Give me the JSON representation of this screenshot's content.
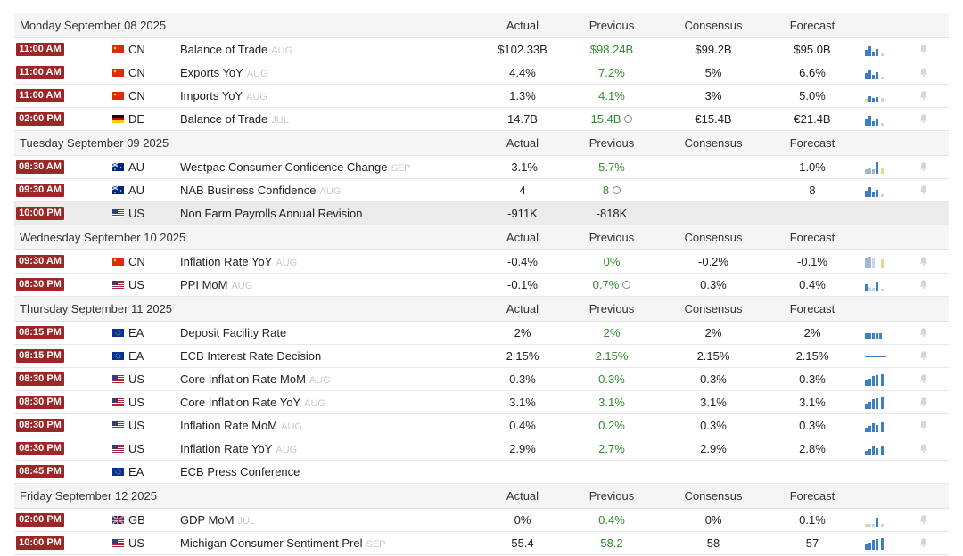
{
  "headers": {
    "actual": "Actual",
    "previous": "Previous",
    "consensus": "Consensus",
    "forecast": "Forecast"
  },
  "days": [
    {
      "date": "Monday September 08 2025",
      "events": [
        {
          "time": "11:00 AM",
          "flag": "cn",
          "country": "CN",
          "event": "Balance of Trade",
          "ref": "AUG",
          "actual": "$102.33B",
          "previous": "$98.24B",
          "previous_green": true,
          "revised": false,
          "consensus": "$99.2B",
          "forecast": "$95.0B",
          "spark": "a"
        },
        {
          "time": "11:00 AM",
          "flag": "cn",
          "country": "CN",
          "event": "Exports YoY",
          "ref": "AUG",
          "actual": "4.4%",
          "previous": "7.2%",
          "previous_green": true,
          "revised": false,
          "consensus": "5%",
          "forecast": "6.6%",
          "spark": "a"
        },
        {
          "time": "11:00 AM",
          "flag": "cn",
          "country": "CN",
          "event": "Imports YoY",
          "ref": "AUG",
          "actual": "1.3%",
          "previous": "4.1%",
          "previous_green": true,
          "revised": false,
          "consensus": "3%",
          "forecast": "5.0%",
          "spark": "b"
        },
        {
          "time": "02:00 PM",
          "flag": "de",
          "country": "DE",
          "event": "Balance of Trade",
          "ref": "JUL",
          "actual": "14.7B",
          "previous": "15.4B",
          "previous_green": true,
          "revised": true,
          "consensus": "€15.4B",
          "forecast": "€21.4B",
          "spark": "a"
        }
      ]
    },
    {
      "date": "Tuesday September 09 2025",
      "events": [
        {
          "time": "08:30 AM",
          "flag": "au",
          "country": "AU",
          "event": "Westpac Consumer Confidence Change",
          "ref": "SEP",
          "actual": "-3.1%",
          "previous": "5.7%",
          "previous_green": true,
          "revised": false,
          "consensus": "",
          "forecast": "1.0%",
          "spark": "c"
        },
        {
          "time": "09:30 AM",
          "flag": "au",
          "country": "AU",
          "event": "NAB Business Confidence",
          "ref": "AUG",
          "actual": "4",
          "previous": "8",
          "previous_green": true,
          "revised": true,
          "consensus": "",
          "forecast": "8",
          "spark": "a"
        },
        {
          "time": "10:00 PM",
          "flag": "us",
          "country": "US",
          "event": "Non Farm Payrolls Annual Revision",
          "ref": "",
          "actual": "-911K",
          "previous": "-818K",
          "previous_green": false,
          "revised": false,
          "consensus": "",
          "forecast": "",
          "spark": "",
          "shaded": true
        }
      ]
    },
    {
      "date": "Wednesday September 10 2025",
      "events": [
        {
          "time": "09:30 AM",
          "flag": "cn",
          "country": "CN",
          "event": "Inflation Rate YoY",
          "ref": "AUG",
          "actual": "-0.4%",
          "previous": "0%",
          "previous_green": true,
          "revised": false,
          "consensus": "-0.2%",
          "forecast": "-0.1%",
          "spark": "d"
        },
        {
          "time": "08:30 PM",
          "flag": "us",
          "country": "US",
          "event": "PPI MoM",
          "ref": "AUG",
          "actual": "-0.1%",
          "previous": "0.7%",
          "previous_green": true,
          "revised": true,
          "consensus": "0.3%",
          "forecast": "0.4%",
          "spark": "e"
        }
      ]
    },
    {
      "date": "Thursday September 11 2025",
      "events": [
        {
          "time": "08:15 PM",
          "flag": "ea",
          "country": "EA",
          "event": "Deposit Facility Rate",
          "ref": "",
          "actual": "2%",
          "previous": "2%",
          "previous_green": true,
          "revised": false,
          "consensus": "2%",
          "forecast": "2%",
          "spark": "f"
        },
        {
          "time": "08:15 PM",
          "flag": "ea",
          "country": "EA",
          "event": "ECB Interest Rate Decision",
          "ref": "",
          "actual": "2.15%",
          "previous": "2.15%",
          "previous_green": true,
          "revised": false,
          "consensus": "2.15%",
          "forecast": "2.15%",
          "spark": "g"
        },
        {
          "time": "08:30 PM",
          "flag": "us",
          "country": "US",
          "event": "Core Inflation Rate MoM",
          "ref": "AUG",
          "actual": "0.3%",
          "previous": "0.3%",
          "previous_green": true,
          "revised": false,
          "consensus": "0.3%",
          "forecast": "0.3%",
          "spark": "h"
        },
        {
          "time": "08:30 PM",
          "flag": "us",
          "country": "US",
          "event": "Core Inflation Rate YoY",
          "ref": "AUG",
          "actual": "3.1%",
          "previous": "3.1%",
          "previous_green": true,
          "revised": false,
          "consensus": "3.1%",
          "forecast": "3.1%",
          "spark": "h"
        },
        {
          "time": "08:30 PM",
          "flag": "us",
          "country": "US",
          "event": "Inflation Rate MoM",
          "ref": "AUG",
          "actual": "0.4%",
          "previous": "0.2%",
          "previous_green": true,
          "revised": false,
          "consensus": "0.3%",
          "forecast": "0.3%",
          "spark": "i"
        },
        {
          "time": "08:30 PM",
          "flag": "us",
          "country": "US",
          "event": "Inflation Rate YoY",
          "ref": "AUG",
          "actual": "2.9%",
          "previous": "2.7%",
          "previous_green": true,
          "revised": false,
          "consensus": "2.9%",
          "forecast": "2.8%",
          "spark": "i"
        },
        {
          "time": "08:45 PM",
          "flag": "ea",
          "country": "EA",
          "event": "ECB Press Conference",
          "ref": "",
          "actual": "",
          "previous": "",
          "previous_green": false,
          "revised": false,
          "consensus": "",
          "forecast": "",
          "spark": ""
        }
      ]
    },
    {
      "date": "Friday September 12 2025",
      "events": [
        {
          "time": "02:00 PM",
          "flag": "gb",
          "country": "GB",
          "event": "GDP MoM",
          "ref": "JUL",
          "actual": "0%",
          "previous": "0.4%",
          "previous_green": true,
          "revised": false,
          "consensus": "0%",
          "forecast": "0.1%",
          "spark": "j"
        },
        {
          "time": "10:00 PM",
          "flag": "us",
          "country": "US",
          "event": "Michigan Consumer Sentiment Prel",
          "ref": "SEP",
          "actual": "55.4",
          "previous": "58.2",
          "previous_green": true,
          "revised": false,
          "consensus": "58",
          "forecast": "57",
          "spark": "h"
        }
      ]
    }
  ]
}
